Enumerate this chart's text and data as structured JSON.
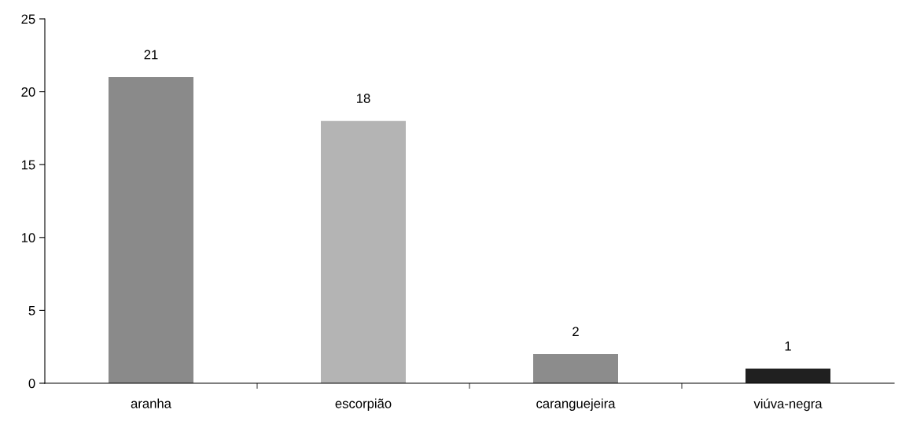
{
  "chart_data": {
    "type": "bar",
    "categories": [
      "aranha",
      "escorpião",
      "caranguejeira",
      "viúva-negra"
    ],
    "values": [
      21,
      18,
      2,
      1
    ],
    "colors": [
      "#8a8a8a",
      "#b4b4b4",
      "#8c8c8c",
      "#202020"
    ],
    "ylim": [
      0,
      25
    ],
    "yticks": [
      0,
      5,
      10,
      15,
      20,
      25
    ],
    "data_labels": true,
    "grid": false,
    "legend": false
  }
}
